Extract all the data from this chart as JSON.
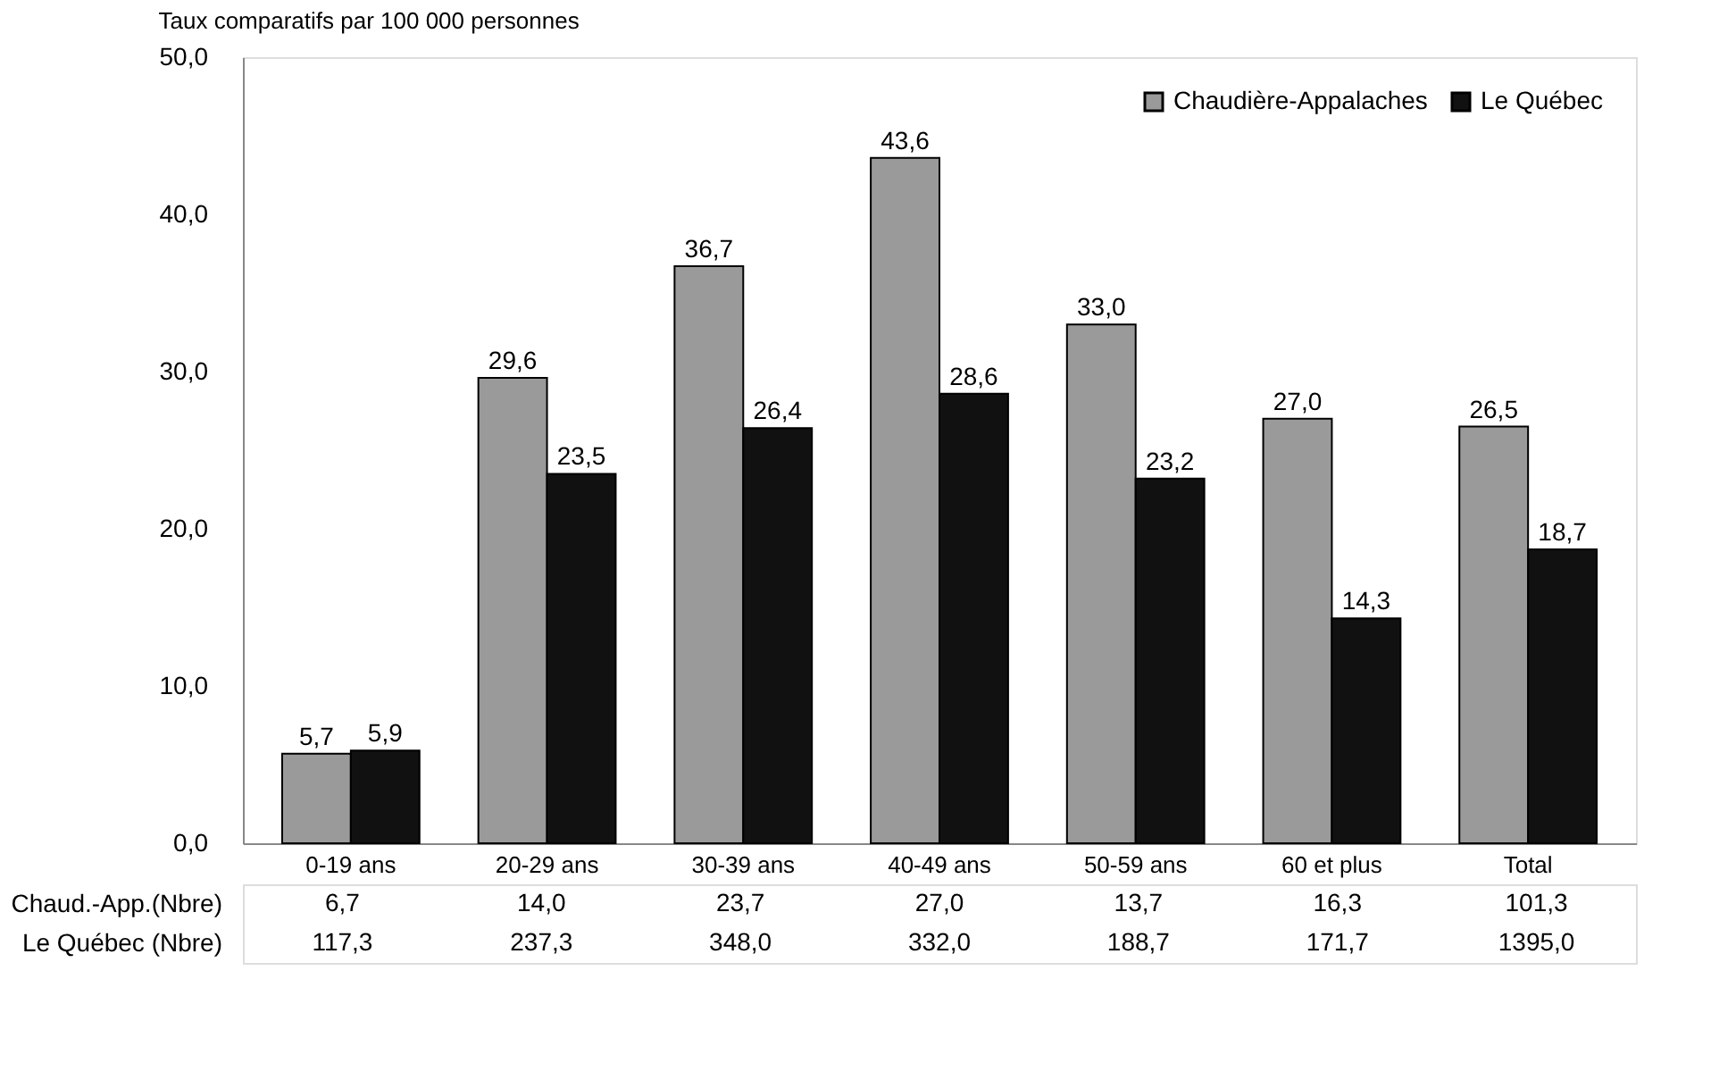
{
  "chart_data": {
    "type": "bar",
    "title": "Taux comparatifs par 100 000 personnes",
    "categories": [
      "0-19 ans",
      "20-29 ans",
      "30-39 ans",
      "40-49 ans",
      "50-59 ans",
      "60 et plus",
      "Total"
    ],
    "series": [
      {
        "name": "Chaudière-Appalaches",
        "color": "#9a9a9a",
        "values": [
          5.7,
          29.6,
          36.7,
          43.6,
          33.0,
          27.0,
          26.5
        ],
        "value_labels": [
          "5,7",
          "29,6",
          "36,7",
          "43,6",
          "33,0",
          "27,0",
          "26,5"
        ]
      },
      {
        "name": "Le Québec",
        "color": "#111111",
        "values": [
          5.9,
          23.5,
          26.4,
          28.6,
          23.2,
          14.3,
          18.7
        ],
        "value_labels": [
          "5,9",
          "23,5",
          "26,4",
          "28,6",
          "23,2",
          "14,3",
          "18,7"
        ]
      }
    ],
    "ylim": [
      0,
      50
    ],
    "yticks": [
      {
        "value": 0,
        "label": "0,0"
      },
      {
        "value": 10,
        "label": "10,0"
      },
      {
        "value": 20,
        "label": "20,0"
      },
      {
        "value": 30,
        "label": "30,0"
      },
      {
        "value": 40,
        "label": "40,0"
      },
      {
        "value": 50,
        "label": "50,0"
      }
    ],
    "grid": false,
    "legend": "top right",
    "annotations": [
      "Chaud.-App.(Nbre)",
      "6,7",
      "14,0",
      "23,7",
      "27,0",
      "13,7",
      "16,3",
      "101,3",
      "Le Québec (Nbre)",
      "117,3",
      "237,3",
      "348,0",
      "332,0",
      "188,7",
      "171,7",
      "1395,0"
    ]
  }
}
